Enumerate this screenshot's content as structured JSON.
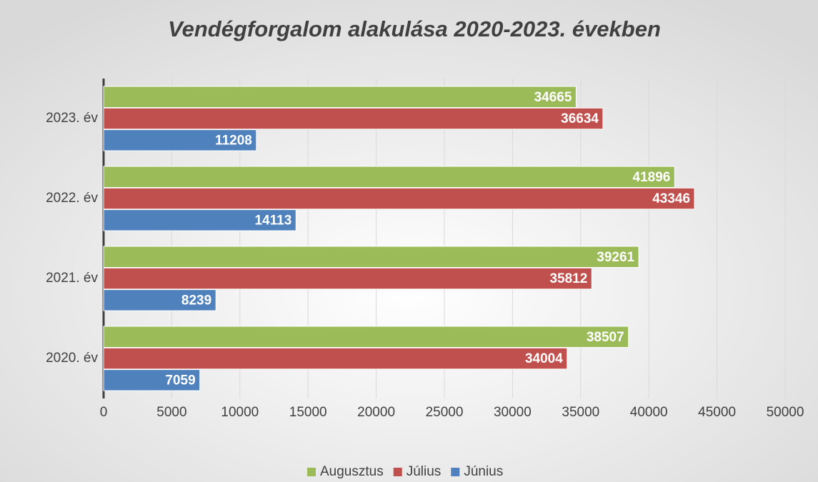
{
  "chart_data": {
    "type": "barh",
    "title": "Vendégforgalom alakulása 2020-2023. években",
    "categories": [
      "2020. év",
      "2021. év",
      "2022. év",
      "2023. év"
    ],
    "series": [
      {
        "name": "Augusztus",
        "color": "#9bbb59",
        "values": [
          38507,
          39261,
          41896,
          34665
        ]
      },
      {
        "name": "Július",
        "color": "#c0504d",
        "values": [
          34004,
          35812,
          43346,
          36634
        ]
      },
      {
        "name": "Június",
        "color": "#4f81bd",
        "values": [
          7059,
          8239,
          14113,
          11208
        ]
      }
    ],
    "xlim": [
      0,
      50000
    ],
    "xticks": [
      0,
      5000,
      10000,
      15000,
      20000,
      25000,
      30000,
      35000,
      40000,
      45000,
      50000
    ],
    "grid": true,
    "legend": "bottom"
  }
}
